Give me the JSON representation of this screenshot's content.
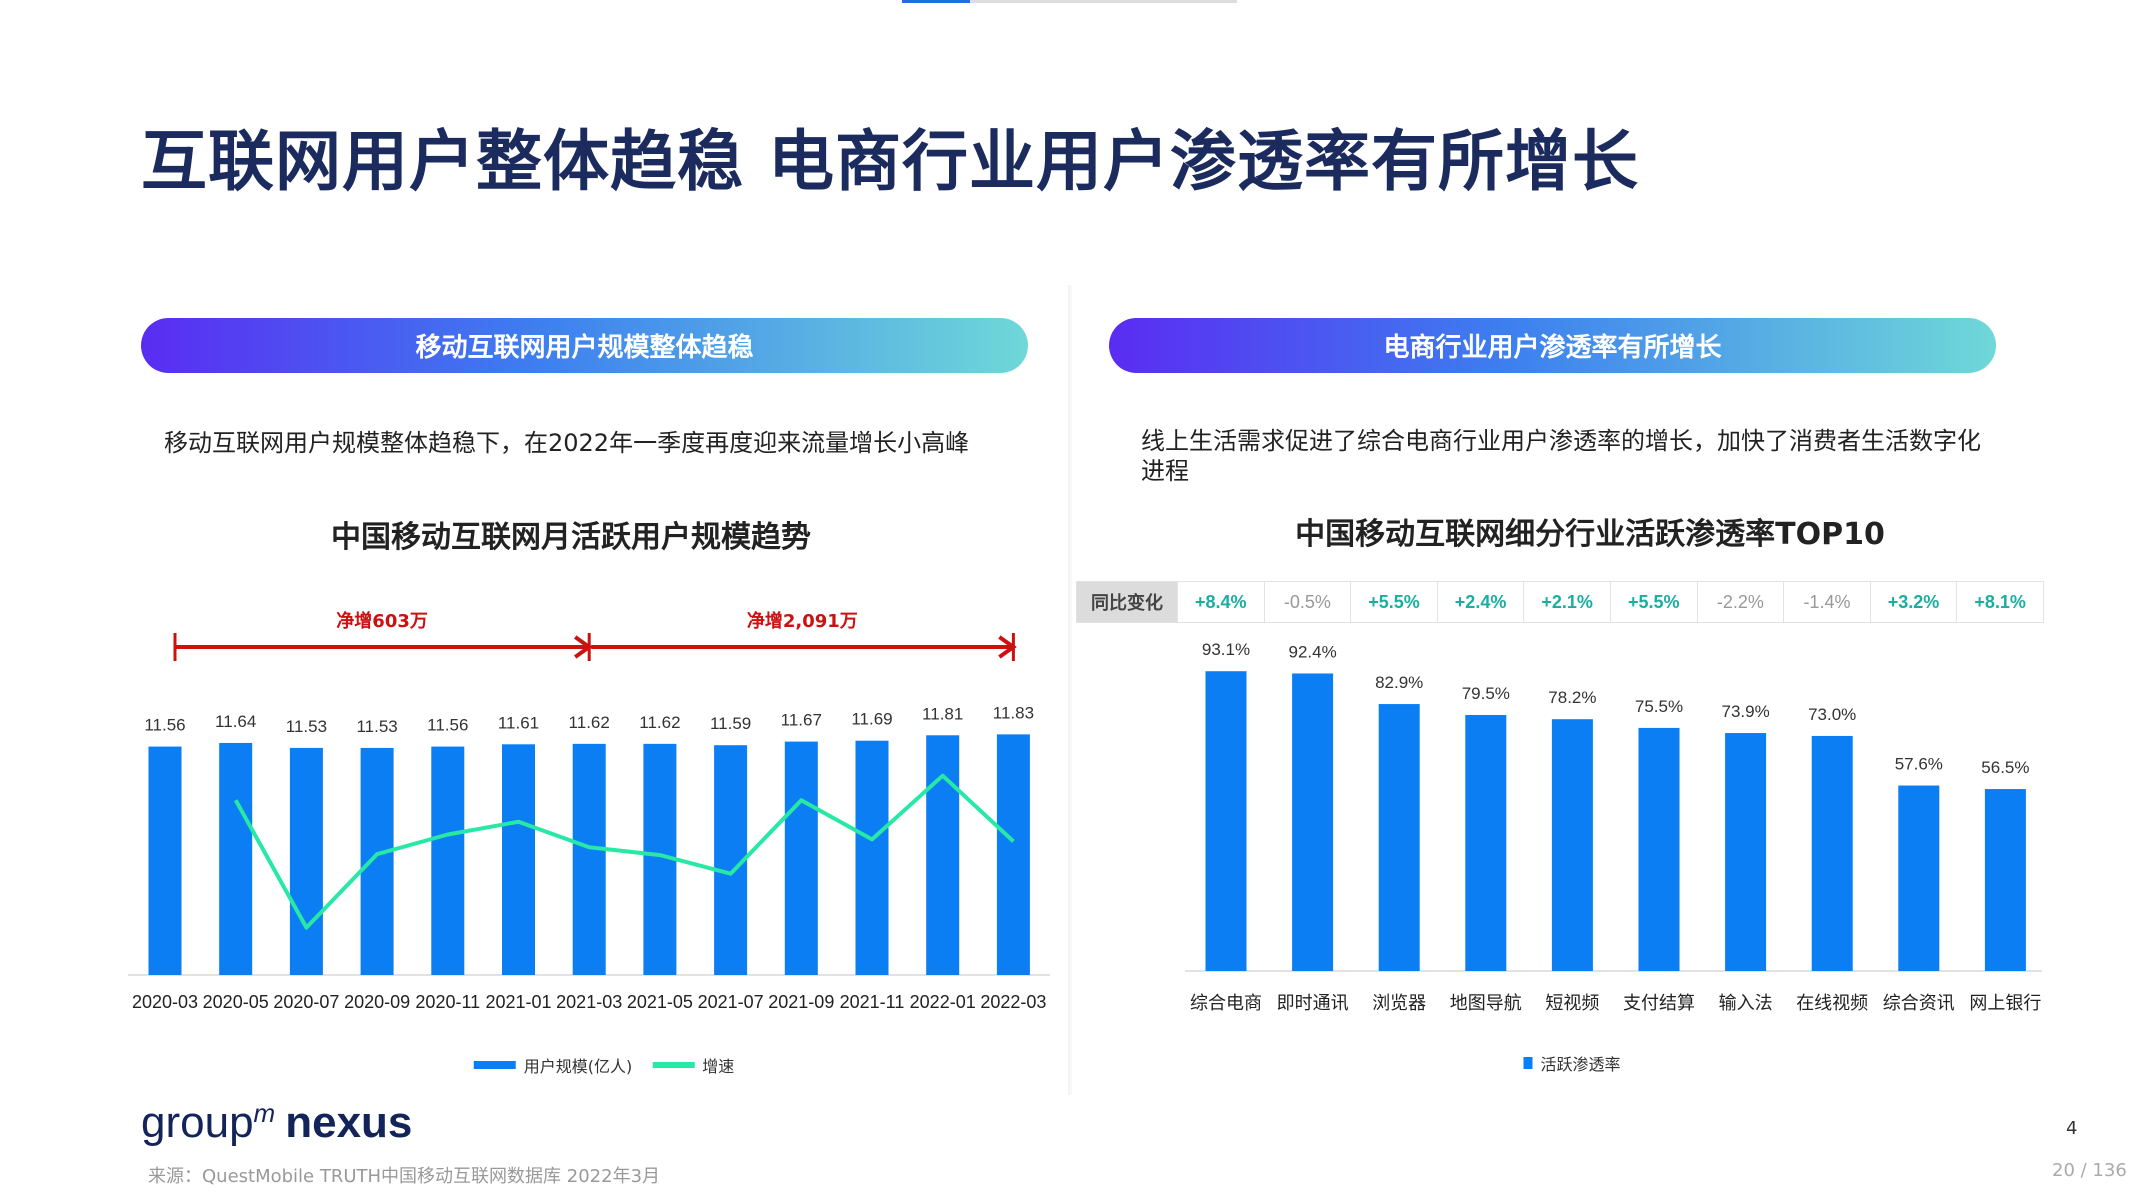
{
  "title": "互联网用户整体趋稳 电商行业用户渗透率有所增长",
  "left": {
    "pill": "移动互联网用户规模整体趋稳",
    "desc": "移动互联网用户规模整体趋稳下，在2022年一季度再度迎来流量增长小高峰",
    "chart_title": "中国移动互联网月活跃用户规模趋势"
  },
  "right": {
    "pill": "电商行业用户渗透率有所增长",
    "desc": "线上生活需求促进了综合电商行业用户渗透率的增长，加快了消费者生活数字化进程",
    "chart_title": "中国移动互联网细分行业活跃渗透率TOP10",
    "yoy_header": "同比变化"
  },
  "colors": {
    "bar": "#0a7ef2",
    "line": "#27e8a4",
    "arrow": "#cc1111",
    "title": "#1b2b5e",
    "positive": "#1aaea0",
    "negative": "#999999"
  },
  "chart_data": [
    {
      "type": "bar",
      "title": "中国移动互联网月活跃用户规模趋势",
      "categories": [
        "2020-03",
        "2020-05",
        "2020-07",
        "2020-09",
        "2020-11",
        "2021-01",
        "2021-03",
        "2021-05",
        "2021-07",
        "2021-09",
        "2021-11",
        "2022-01",
        "2022-03"
      ],
      "series": [
        {
          "name": "用户规模(亿人)",
          "type": "bar",
          "values": [
            11.56,
            11.64,
            11.53,
            11.53,
            11.56,
            11.61,
            11.62,
            11.62,
            11.59,
            11.67,
            11.69,
            11.81,
            11.83
          ],
          "labels": [
            "11.56",
            "11.64",
            "11.53",
            "11.53",
            "11.56",
            "11.61",
            "11.62",
            "11.62",
            "11.59",
            "11.67",
            "11.69",
            "11.81",
            "11.83"
          ]
        },
        {
          "name": "增速",
          "type": "line",
          "values": [
            null,
            16,
            3,
            10.5,
            12.5,
            13.8,
            11.2,
            10.4,
            8.5,
            16,
            12,
            18.5,
            11.8
          ]
        }
      ],
      "ylim": [
        6.5,
        12.5
      ],
      "annotations": [
        {
          "text": "净增603万",
          "from": "2020-03",
          "to": "2021-03"
        },
        {
          "text": "净增2,091万",
          "from": "2021-03",
          "to": "2022-03"
        }
      ],
      "legend": "bottom",
      "grid": false
    },
    {
      "type": "bar",
      "title": "中国移动互联网细分行业活跃渗透率TOP10",
      "categories": [
        "综合电商",
        "即时通讯",
        "浏览器",
        "地图导航",
        "短视频",
        "支付结算",
        "输入法",
        "在线视频",
        "综合资讯",
        "网上银行"
      ],
      "series": [
        {
          "name": "活跃渗透率",
          "values": [
            93.1,
            92.4,
            82.9,
            79.5,
            78.2,
            75.5,
            73.9,
            73.0,
            57.6,
            56.5
          ],
          "labels": [
            "93.1%",
            "92.4%",
            "82.9%",
            "79.5%",
            "78.2%",
            "75.5%",
            "73.9%",
            "73.0%",
            "57.6%",
            "56.5%"
          ]
        }
      ],
      "yoy_change": [
        "+8.4%",
        "-0.5%",
        "+5.5%",
        "+2.4%",
        "+2.1%",
        "+5.5%",
        "-2.2%",
        "-1.4%",
        "+3.2%",
        "+8.1%"
      ],
      "ylim": [
        0,
        100
      ],
      "legend": "bottom",
      "grid": false
    }
  ],
  "footer": {
    "logo": "groupm nexus",
    "source": "来源：QuestMobile TRUTH中国移动互联网数据库 2022年3月",
    "page_number": "4",
    "page_count": "20 / 136"
  }
}
